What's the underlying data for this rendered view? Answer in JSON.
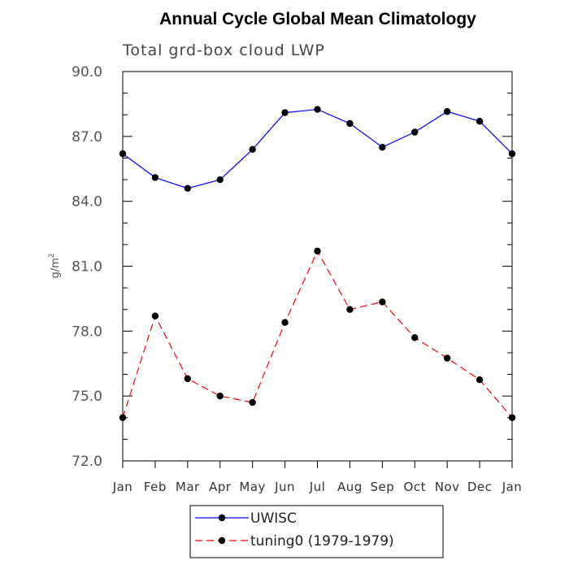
{
  "chart_data": {
    "type": "line",
    "title": "Annual Cycle Global Mean Climatology",
    "subtitle": "Total grd-box cloud LWP",
    "ylabel_base": "g/m",
    "ylabel_sup": "2",
    "ylim": [
      72.0,
      90.0
    ],
    "yticks": [
      "72.0",
      "75.0",
      "78.0",
      "81.0",
      "84.0",
      "87.0",
      "90.0"
    ],
    "ytick_values": [
      72,
      75,
      78,
      81,
      84,
      87,
      90
    ],
    "categories": [
      "Jan",
      "Feb",
      "Mar",
      "Apr",
      "May",
      "Jun",
      "Jul",
      "Aug",
      "Sep",
      "Oct",
      "Nov",
      "Dec",
      "Jan"
    ],
    "series": [
      {
        "name": "UWISC",
        "color": "#0000ff",
        "dash": "solid",
        "values": [
          86.2,
          85.1,
          84.6,
          85.0,
          86.4,
          88.1,
          88.25,
          87.6,
          86.5,
          87.2,
          88.15,
          87.7,
          86.2
        ]
      },
      {
        "name": "tuning0 (1979-1979)",
        "color": "#ff0000",
        "dash": "dashed",
        "values": [
          74.0,
          78.7,
          75.8,
          75.0,
          74.7,
          78.4,
          81.7,
          79.0,
          79.35,
          77.7,
          76.75,
          75.75,
          74.0
        ]
      }
    ],
    "grid": false,
    "legend_position": "bottom"
  }
}
